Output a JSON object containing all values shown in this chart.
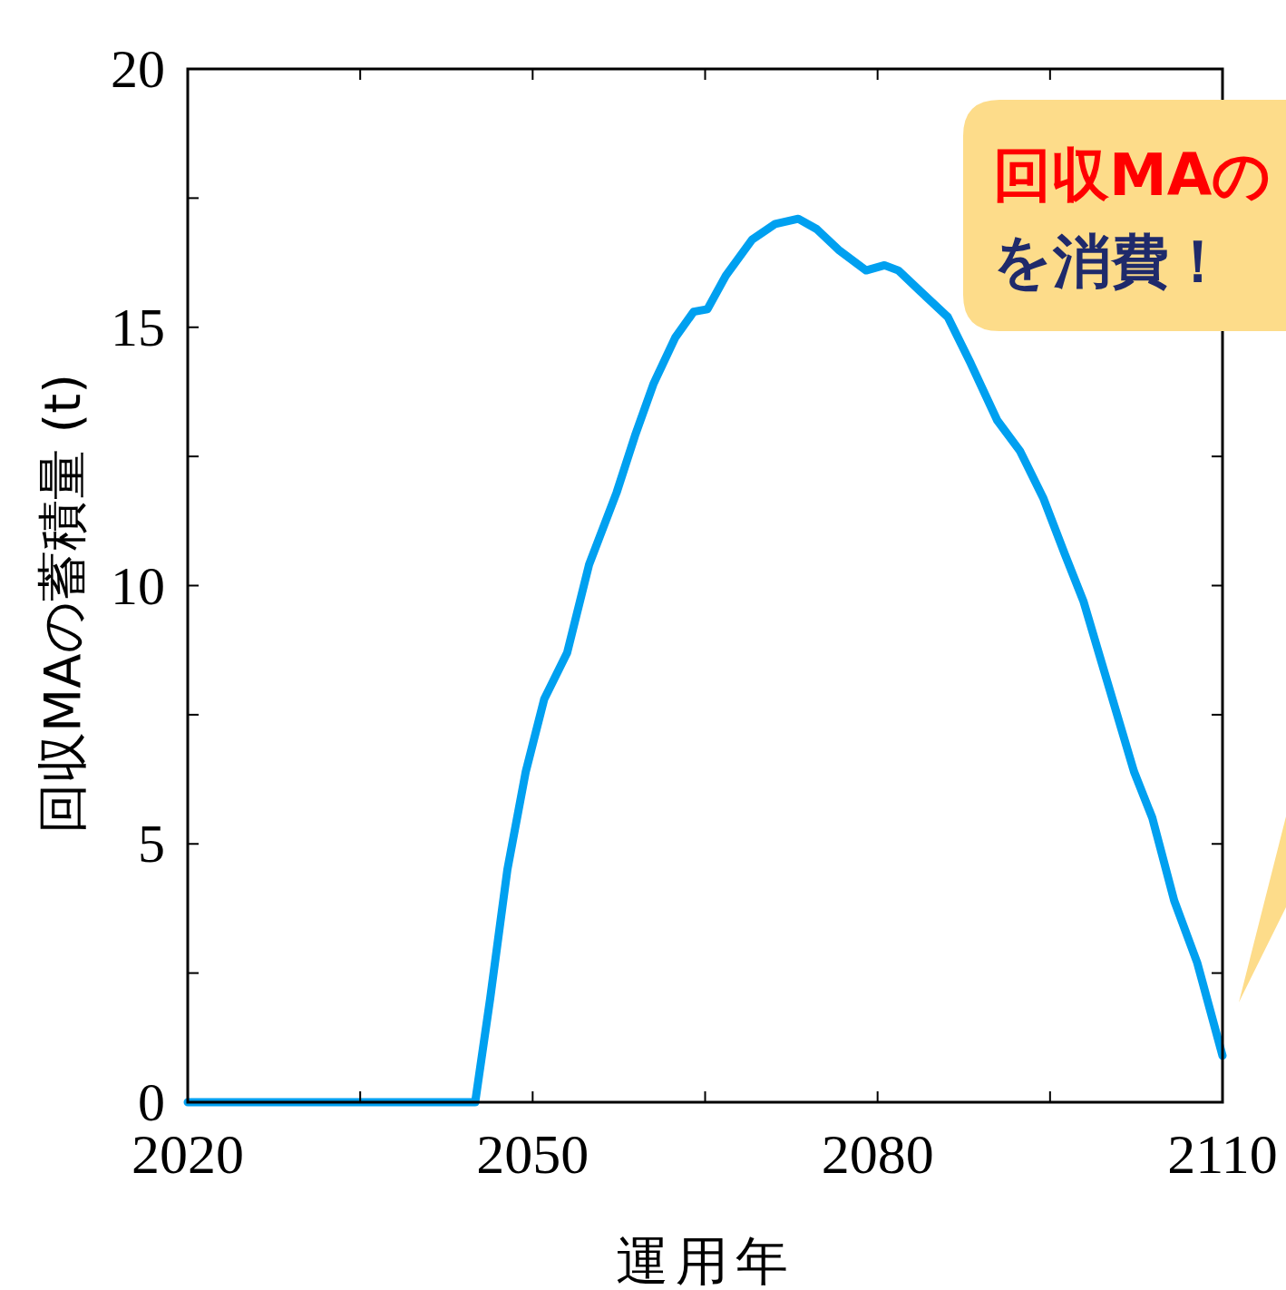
{
  "chart_data": {
    "type": "line",
    "xlabel": "運用年",
    "ylabel": "回収MAの蓄積量 (t)",
    "xlim": [
      2020,
      2110
    ],
    "ylim": [
      0,
      20
    ],
    "xticks": [
      2020,
      {
        "value": 2035,
        "label": null
      },
      2050,
      {
        "value": 2065,
        "label": null
      },
      2080,
      {
        "value": 2095,
        "label": null
      },
      2110
    ],
    "yticks": [
      0,
      {
        "value": 2.5,
        "label": null
      },
      5,
      {
        "value": 7.5,
        "label": null
      },
      10,
      {
        "value": 12.5,
        "label": null
      },
      15,
      {
        "value": 17.5,
        "label": null
      },
      20
    ],
    "grid": false,
    "marker": "none",
    "line_style": "solid",
    "annotations": [
      "回収MAの",
      "を消費！"
    ],
    "series": [
      {
        "color": "#00a0f0",
        "x": [
          2020,
          2045,
          2046.3,
          2047.8,
          2049.4,
          2051,
          2053,
          2054.9,
          2057.3,
          2058.9,
          2060.5,
          2062.4,
          2064,
          2065.2,
          2066.8,
          2069.1,
          2071.1,
          2073.1,
          2074.7,
          2076.6,
          2079,
          2080.6,
          2081.8,
          2083.7,
          2086.1,
          2088.1,
          2090.4,
          2092.4,
          2094.4,
          2096.3,
          2097.9,
          2099.5,
          2101.1,
          2102.3,
          2103.9,
          2105.8,
          2107.8,
          2110
        ],
        "values": [
          0,
          0,
          2.0,
          4.5,
          6.4,
          7.8,
          8.7,
          10.4,
          11.8,
          12.9,
          13.9,
          14.8,
          15.3,
          15.35,
          16.0,
          16.7,
          17.0,
          17.1,
          16.9,
          16.5,
          16.1,
          16.2,
          16.1,
          15.7,
          15.2,
          14.3,
          13.2,
          12.6,
          11.7,
          10.6,
          9.7,
          8.5,
          7.3,
          6.4,
          5.5,
          3.9,
          2.7,
          0.9
        ]
      }
    ]
  }
}
